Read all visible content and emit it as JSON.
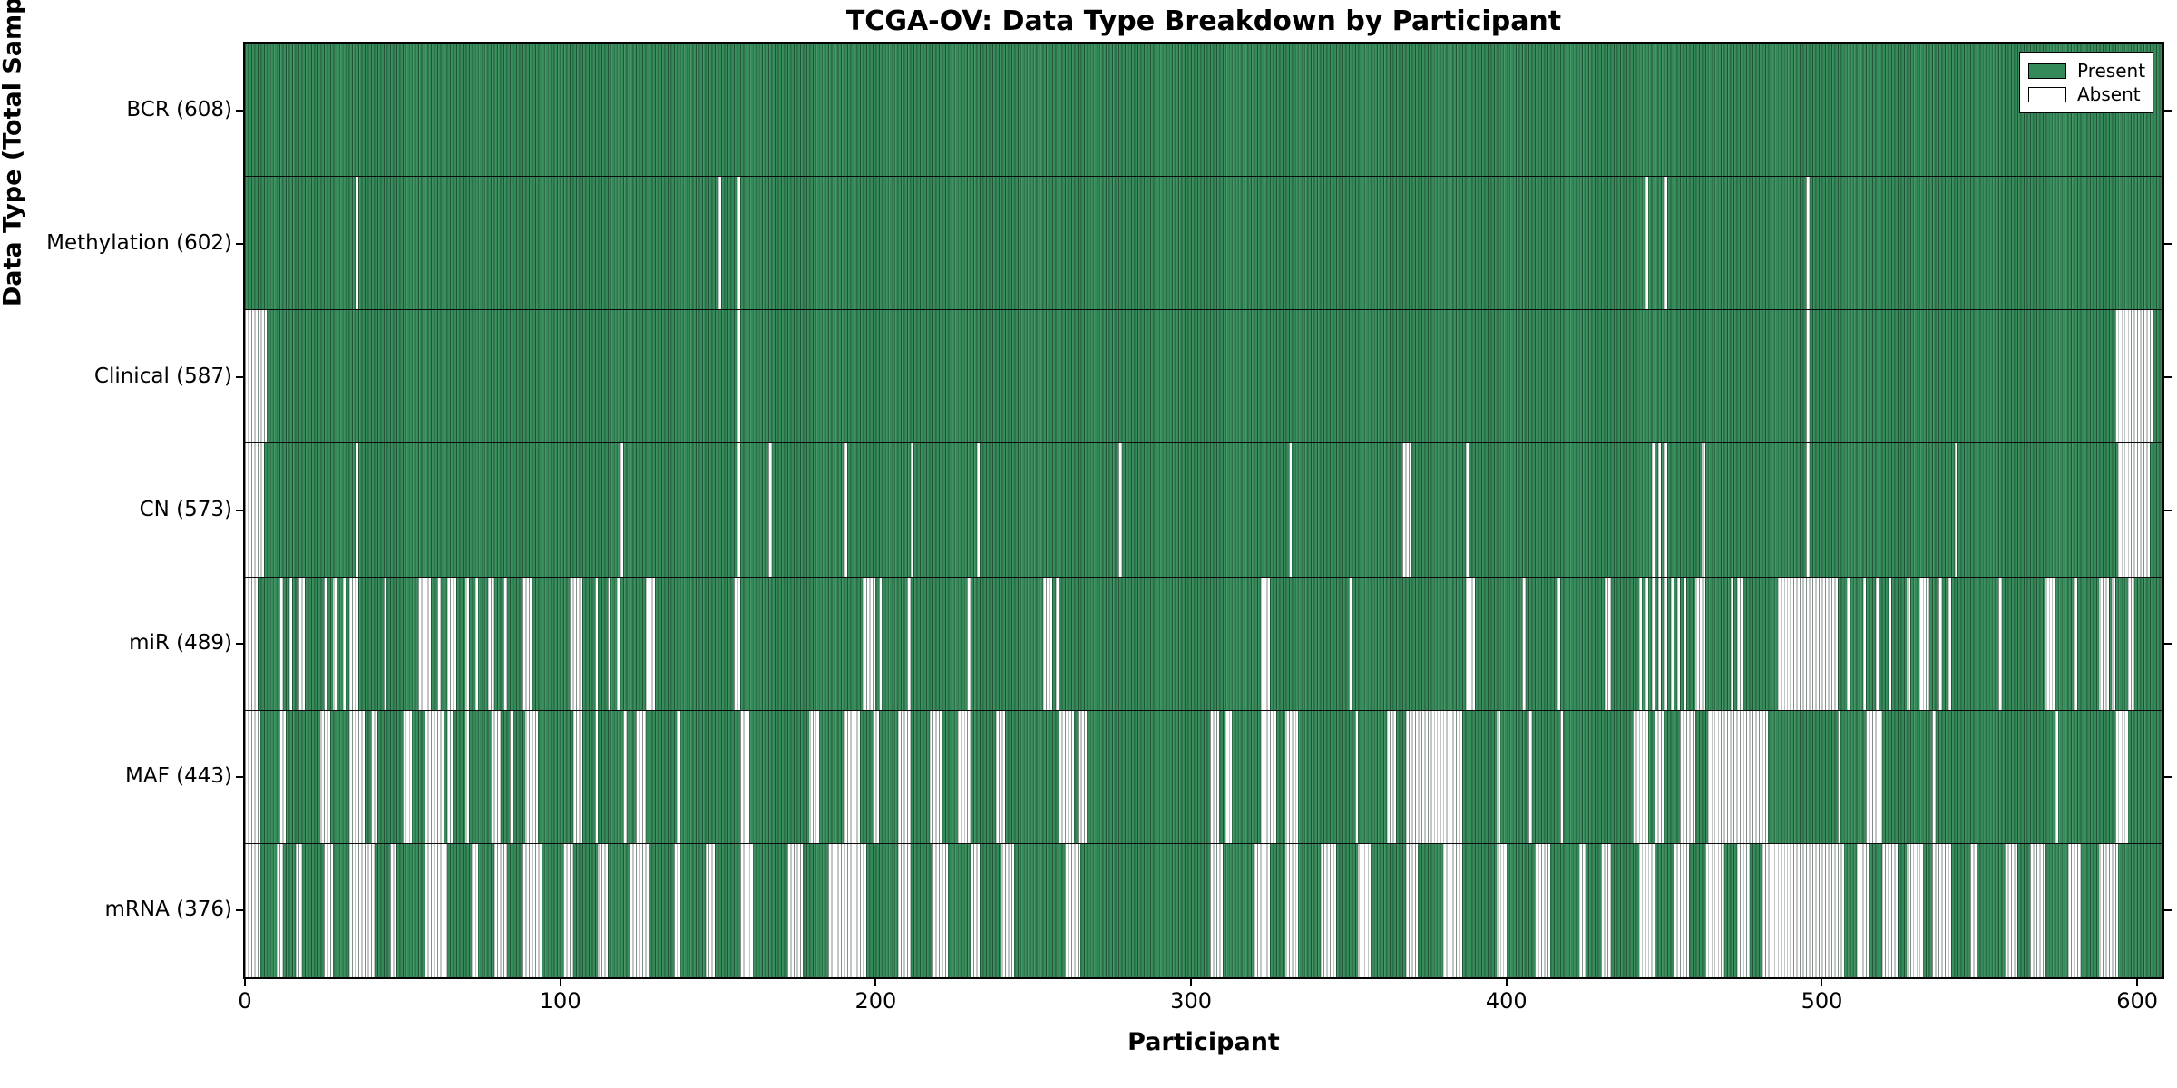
{
  "title": "TCGA-OV: Data Type Breakdown by Participant",
  "axes": {
    "xlabel": "Participant",
    "ylabel": "Data Type (Total Sample Count)",
    "x_ticks": [
      0,
      100,
      200,
      300,
      400,
      500,
      600
    ]
  },
  "legend": {
    "position": "upper right",
    "items": [
      {
        "label": "Present",
        "color": "#348a58"
      },
      {
        "label": "Absent",
        "color": "#ffffff"
      }
    ]
  },
  "colors": {
    "present": "#348a58",
    "absent": "#ffffff",
    "bar_edge": "#14321f",
    "spine": "#000000"
  },
  "chart_data": {
    "type": "heatmap",
    "subtype": "presence-absence-matrix",
    "title": "TCGA-OV: Data Type Breakdown by Participant",
    "xlabel": "Participant",
    "ylabel": "Data Type (Total Sample Count)",
    "xlim": [
      0,
      608
    ],
    "x_ticks": [
      0,
      100,
      200,
      300,
      400,
      500,
      600
    ],
    "n_participants": 608,
    "grid": false,
    "legend_position": "upper right",
    "value_labels": {
      "present": "Present",
      "absent": "Absent"
    },
    "rows": [
      {
        "name": "BCR",
        "label": "BCR (608)",
        "present_count": 608,
        "absent_ranges": []
      },
      {
        "name": "Methylation",
        "label": "Methylation (602)",
        "present_count": 602,
        "absent_ranges": [
          [
            35,
            35
          ],
          [
            150,
            150
          ],
          [
            156,
            156
          ],
          [
            444,
            444
          ],
          [
            450,
            450
          ],
          [
            495,
            495
          ]
        ]
      },
      {
        "name": "Clinical",
        "label": "Clinical (587)",
        "present_count": 587,
        "absent_ranges": [
          [
            0,
            6
          ],
          [
            156,
            156
          ],
          [
            495,
            495
          ],
          [
            593,
            604
          ]
        ]
      },
      {
        "name": "CN",
        "label": "CN (573)",
        "present_count": 573,
        "absent_ranges": [
          [
            0,
            5
          ],
          [
            35,
            35
          ],
          [
            119,
            119
          ],
          [
            156,
            156
          ],
          [
            166,
            166
          ],
          [
            190,
            190
          ],
          [
            211,
            211
          ],
          [
            232,
            232
          ],
          [
            277,
            277
          ],
          [
            331,
            331
          ],
          [
            367,
            369
          ],
          [
            387,
            387
          ],
          [
            446,
            446
          ],
          [
            448,
            448
          ],
          [
            450,
            450
          ],
          [
            462,
            462
          ],
          [
            495,
            495
          ],
          [
            542,
            542
          ],
          [
            594,
            603
          ]
        ]
      },
      {
        "name": "miR",
        "label": "miR (489)",
        "present_count": 489,
        "absent_ranges": [
          [
            0,
            3
          ],
          [
            11,
            11
          ],
          [
            14,
            14
          ],
          [
            17,
            18
          ],
          [
            25,
            25
          ],
          [
            28,
            28
          ],
          [
            31,
            31
          ],
          [
            33,
            35
          ],
          [
            44,
            44
          ],
          [
            55,
            58
          ],
          [
            61,
            61
          ],
          [
            64,
            66
          ],
          [
            70,
            70
          ],
          [
            73,
            73
          ],
          [
            77,
            78
          ],
          [
            82,
            82
          ],
          [
            88,
            90
          ],
          [
            103,
            106
          ],
          [
            111,
            111
          ],
          [
            115,
            115
          ],
          [
            118,
            118
          ],
          [
            127,
            129
          ],
          [
            155,
            156
          ],
          [
            196,
            199
          ],
          [
            201,
            201
          ],
          [
            210,
            210
          ],
          [
            229,
            229
          ],
          [
            253,
            255
          ],
          [
            257,
            257
          ],
          [
            322,
            324
          ],
          [
            350,
            350
          ],
          [
            387,
            389
          ],
          [
            405,
            405
          ],
          [
            416,
            416
          ],
          [
            431,
            432
          ],
          [
            442,
            442
          ],
          [
            444,
            444
          ],
          [
            446,
            446
          ],
          [
            448,
            448
          ],
          [
            450,
            450
          ],
          [
            452,
            452
          ],
          [
            454,
            454
          ],
          [
            456,
            456
          ],
          [
            460,
            462
          ],
          [
            471,
            471
          ],
          [
            473,
            474
          ],
          [
            486,
            504
          ],
          [
            508,
            508
          ],
          [
            513,
            513
          ],
          [
            517,
            517
          ],
          [
            521,
            521
          ],
          [
            527,
            527
          ],
          [
            531,
            533
          ],
          [
            537,
            537
          ],
          [
            540,
            540
          ],
          [
            556,
            556
          ],
          [
            571,
            573
          ],
          [
            580,
            580
          ],
          [
            588,
            590
          ],
          [
            592,
            592
          ],
          [
            597,
            598
          ]
        ]
      },
      {
        "name": "MAF",
        "label": "MAF (443)",
        "present_count": 443,
        "absent_ranges": [
          [
            0,
            4
          ],
          [
            11,
            12
          ],
          [
            24,
            26
          ],
          [
            33,
            37
          ],
          [
            40,
            41
          ],
          [
            50,
            52
          ],
          [
            57,
            62
          ],
          [
            64,
            65
          ],
          [
            70,
            70
          ],
          [
            78,
            80
          ],
          [
            84,
            84
          ],
          [
            89,
            92
          ],
          [
            104,
            106
          ],
          [
            111,
            111
          ],
          [
            120,
            120
          ],
          [
            124,
            126
          ],
          [
            137,
            137
          ],
          [
            157,
            159
          ],
          [
            179,
            181
          ],
          [
            190,
            194
          ],
          [
            199,
            200
          ],
          [
            207,
            210
          ],
          [
            217,
            220
          ],
          [
            226,
            229
          ],
          [
            238,
            240
          ],
          [
            258,
            262
          ],
          [
            264,
            266
          ],
          [
            306,
            308
          ],
          [
            311,
            312
          ],
          [
            322,
            326
          ],
          [
            330,
            333
          ],
          [
            352,
            352
          ],
          [
            362,
            364
          ],
          [
            368,
            385
          ],
          [
            397,
            397
          ],
          [
            407,
            407
          ],
          [
            417,
            417
          ],
          [
            440,
            444
          ],
          [
            447,
            449
          ],
          [
            455,
            459
          ],
          [
            464,
            482
          ],
          [
            505,
            505
          ],
          [
            514,
            518
          ],
          [
            535,
            535
          ],
          [
            574,
            574
          ],
          [
            593,
            596
          ]
        ]
      },
      {
        "name": "mRNA",
        "label": "mRNA (376)",
        "present_count": 376,
        "absent_ranges": [
          [
            0,
            4
          ],
          [
            10,
            11
          ],
          [
            16,
            17
          ],
          [
            25,
            27
          ],
          [
            33,
            40
          ],
          [
            46,
            47
          ],
          [
            57,
            63
          ],
          [
            72,
            73
          ],
          [
            79,
            82
          ],
          [
            88,
            93
          ],
          [
            101,
            103
          ],
          [
            112,
            114
          ],
          [
            122,
            127
          ],
          [
            136,
            137
          ],
          [
            146,
            148
          ],
          [
            157,
            160
          ],
          [
            172,
            176
          ],
          [
            185,
            196
          ],
          [
            207,
            210
          ],
          [
            218,
            222
          ],
          [
            230,
            232
          ],
          [
            240,
            243
          ],
          [
            260,
            264
          ],
          [
            306,
            309
          ],
          [
            320,
            324
          ],
          [
            330,
            333
          ],
          [
            341,
            345
          ],
          [
            353,
            356
          ],
          [
            368,
            371
          ],
          [
            380,
            385
          ],
          [
            397,
            399
          ],
          [
            409,
            413
          ],
          [
            423,
            424
          ],
          [
            430,
            432
          ],
          [
            442,
            446
          ],
          [
            453,
            457
          ],
          [
            463,
            468
          ],
          [
            473,
            476
          ],
          [
            481,
            506
          ],
          [
            511,
            514
          ],
          [
            519,
            523
          ],
          [
            527,
            531
          ],
          [
            535,
            540
          ],
          [
            547,
            548
          ],
          [
            558,
            561
          ],
          [
            566,
            570
          ],
          [
            578,
            581
          ],
          [
            588,
            593
          ]
        ]
      }
    ]
  }
}
